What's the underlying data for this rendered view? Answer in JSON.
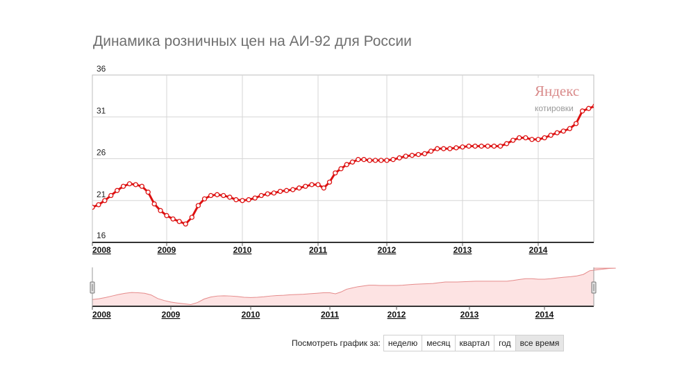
{
  "chart_data": {
    "type": "line",
    "title": "Динамика розничных цен на АИ-92 для России",
    "xlabel": "",
    "ylabel": "",
    "ylim": [
      16,
      36
    ],
    "yticks": [
      "36",
      "31",
      "26",
      "21",
      "16"
    ],
    "xticks": [
      "2008",
      "2009",
      "2010",
      "2011",
      "2012",
      "2013",
      "2014"
    ],
    "grid": true,
    "line_color": "#dd1111",
    "series": [
      {
        "x": [
          "2008-01",
          "2008-02",
          "2008-03",
          "2008-04",
          "2008-05",
          "2008-06",
          "2008-07",
          "2008-08",
          "2008-09",
          "2008-10",
          "2008-11",
          "2008-12",
          "2009-01",
          "2009-02",
          "2009-03",
          "2009-04",
          "2009-05",
          "2009-06",
          "2009-07",
          "2009-08",
          "2009-09",
          "2009-10",
          "2009-11",
          "2009-12",
          "2010-01",
          "2010-02",
          "2010-03",
          "2010-04",
          "2010-05",
          "2010-06",
          "2010-07",
          "2010-08",
          "2010-09",
          "2010-10",
          "2010-11",
          "2010-12",
          "2011-01",
          "2011-02",
          "2011-03",
          "2011-04",
          "2011-05",
          "2011-06",
          "2011-07",
          "2011-08",
          "2011-09",
          "2011-10",
          "2011-11",
          "2011-12",
          "2012-01",
          "2012-02",
          "2012-03",
          "2012-04",
          "2012-05",
          "2012-06",
          "2012-07",
          "2012-08",
          "2012-09",
          "2012-10",
          "2012-11",
          "2012-12",
          "2013-01",
          "2013-02",
          "2013-03",
          "2013-04",
          "2013-05",
          "2013-06",
          "2013-07",
          "2013-08",
          "2013-09",
          "2013-10",
          "2013-11",
          "2013-12",
          "2014-01",
          "2014-02",
          "2014-03",
          "2014-04",
          "2014-05",
          "2014-06",
          "2014-07",
          "2014-08",
          "2014-09",
          "2014-10",
          "2014-11",
          "2014-12"
        ],
        "values": [
          20.2,
          20.5,
          21.0,
          21.6,
          22.2,
          22.7,
          23.0,
          22.9,
          22.7,
          22.0,
          20.6,
          19.8,
          19.2,
          18.8,
          18.5,
          18.2,
          19.0,
          20.4,
          21.2,
          21.6,
          21.7,
          21.6,
          21.4,
          21.1,
          21.0,
          21.1,
          21.3,
          21.6,
          21.8,
          21.9,
          22.1,
          22.2,
          22.3,
          22.5,
          22.7,
          22.9,
          22.9,
          22.5,
          23.2,
          24.3,
          24.8,
          25.3,
          25.6,
          25.9,
          25.9,
          25.8,
          25.8,
          25.8,
          25.8,
          25.9,
          26.1,
          26.3,
          26.4,
          26.5,
          26.6,
          26.9,
          27.2,
          27.2,
          27.2,
          27.3,
          27.4,
          27.5,
          27.5,
          27.5,
          27.5,
          27.5,
          27.5,
          27.8,
          28.2,
          28.5,
          28.5,
          28.3,
          28.3,
          28.5,
          28.8,
          29.1,
          29.3,
          29.6,
          30.2,
          31.7,
          32.0,
          32.3,
          32.6,
          32.7
        ]
      }
    ]
  },
  "watermark": {
    "brand": "Яндекс",
    "sub": "котировки"
  },
  "period_selector": {
    "label": "Посмотреть график за:",
    "options": [
      "неделю",
      "месяц",
      "квартал",
      "год",
      "все время"
    ],
    "active": "все время"
  }
}
